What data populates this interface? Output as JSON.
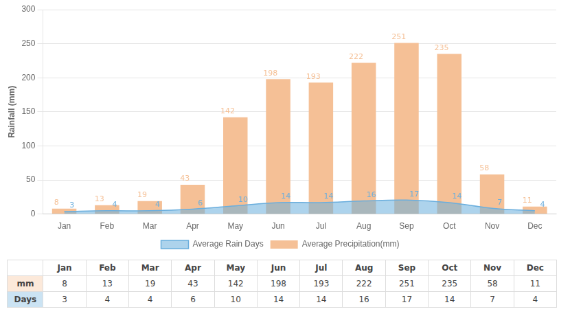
{
  "chart_data": {
    "type": "bar",
    "categories": [
      "Jan",
      "Feb",
      "Mar",
      "Apr",
      "May",
      "Jun",
      "Jul",
      "Aug",
      "Sep",
      "Oct",
      "Nov",
      "Dec"
    ],
    "series": [
      {
        "name": "Average Precipitation(mm)",
        "type": "bar",
        "color": "#F5C096",
        "values": [
          8,
          13,
          19,
          43,
          142,
          198,
          193,
          222,
          251,
          235,
          58,
          11
        ]
      },
      {
        "name": "Average Rain Days",
        "type": "area",
        "color": "#6AAEDD",
        "axis": "y2",
        "values": [
          3,
          4,
          4,
          6,
          10,
          14,
          14,
          16,
          17,
          14,
          7,
          4
        ]
      }
    ],
    "ylabel": "Rainfall (mm)",
    "ylim": [
      0,
      300
    ],
    "yticks": [
      0,
      50,
      100,
      150,
      200,
      250,
      300
    ],
    "y2lim": [
      0,
      250
    ],
    "y2ticks": [],
    "grid": true,
    "legend": "bottom",
    "data_labels": true,
    "table": {
      "row_labels": [
        "mm",
        "Days"
      ]
    }
  }
}
